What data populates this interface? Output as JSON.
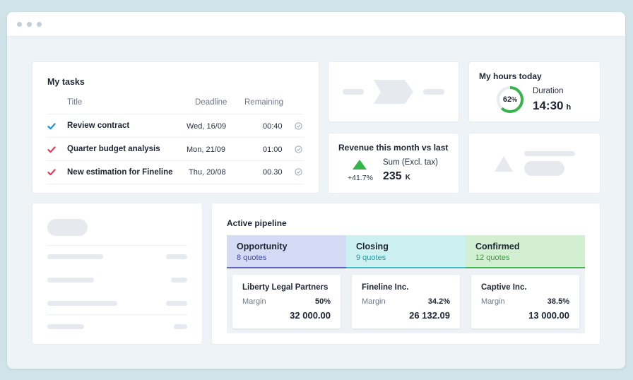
{
  "tasks": {
    "title": "My tasks",
    "columns": {
      "title": "Title",
      "deadline": "Deadline",
      "remaining": "Remaining"
    },
    "rows": [
      {
        "title": "Review contract",
        "deadline": "Wed, 16/09",
        "remaining": "00:40",
        "check_color": "#1d8fd6"
      },
      {
        "title": "Quarter budget analysis",
        "deadline": "Mon, 21/09",
        "remaining": "01:00",
        "check_color": "#e2395a"
      },
      {
        "title": "New estimation for Fineline",
        "deadline": "Thu, 20/08",
        "remaining": "00.30",
        "check_color": "#e2395a"
      }
    ]
  },
  "hours": {
    "title": "My hours today",
    "percent": "62",
    "percent_suffix": "%",
    "progress": 0.62,
    "duration_label": "Duration",
    "duration_value": "14:30",
    "duration_unit": "h",
    "ring_color": "#35b44a"
  },
  "revenue": {
    "title": "Revenue this month vs last",
    "change": "+41.7%",
    "sum_label": "Sum (Excl. tax)",
    "sum_value": "235",
    "sum_unit": "K",
    "trend_color": "#35b44a"
  },
  "pipeline": {
    "title": "Active pipeline",
    "stages": [
      {
        "name": "Opportunity",
        "count": "8 quotes",
        "bg": "#d5daf5",
        "line": "#5b63c9",
        "count_color": "#3f4aa6"
      },
      {
        "name": "Closing",
        "count": "9 quotes",
        "bg": "#cdf1f0",
        "line": "#3fbfc4",
        "count_color": "#2a97a0"
      },
      {
        "name": "Confirmed",
        "count": "12 quotes",
        "bg": "#d2efd1",
        "line": "#47b552",
        "count_color": "#3d9a48"
      }
    ],
    "deals": [
      {
        "name": "Liberty Legal Partners",
        "margin_label": "Margin",
        "margin": "50%",
        "amount": "32 000.00"
      },
      {
        "name": "Fineline Inc.",
        "margin_label": "Margin",
        "margin": "34.2%",
        "amount": "26 132.09"
      },
      {
        "name": "Captive Inc.",
        "margin_label": "Margin",
        "margin": "38.5%",
        "amount": "13 000.00"
      }
    ]
  }
}
